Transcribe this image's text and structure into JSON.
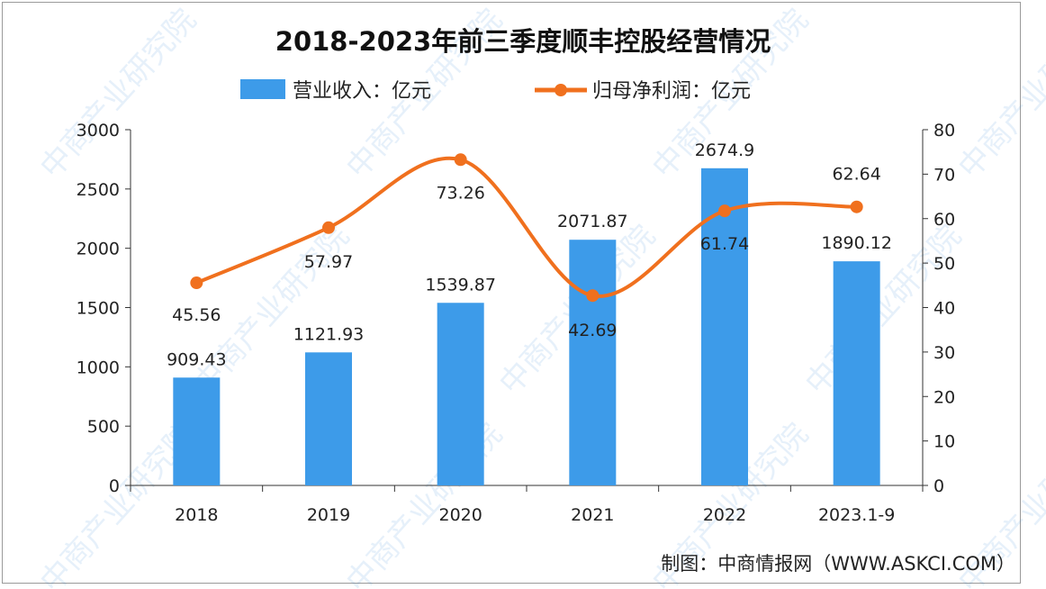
{
  "chart_data": {
    "type": "bar+line",
    "title": "2018-2023年前三季度顺丰控股经营情况",
    "categories": [
      "2018",
      "2019",
      "2020",
      "2021",
      "2022",
      "2023.1-9"
    ],
    "series": [
      {
        "name": "营业收入：亿元",
        "type": "bar",
        "axis": "left",
        "color": "#3d9be9",
        "values": [
          909.43,
          1121.93,
          1539.87,
          2071.87,
          2674.9,
          1890.12
        ],
        "labels": [
          "909.43",
          "1121.93",
          "1539.87",
          "2071.87",
          "2674.9",
          "1890.12"
        ]
      },
      {
        "name": "归母净利润：亿元",
        "type": "line",
        "axis": "right",
        "color": "#f0701e",
        "smooth": true,
        "values": [
          45.56,
          57.97,
          73.26,
          42.69,
          61.74,
          62.64
        ],
        "labels": [
          "45.56",
          "57.97",
          "73.26",
          "42.69",
          "61.74",
          "62.64"
        ]
      }
    ],
    "y_left": {
      "range": [
        0,
        3000
      ],
      "ticks": [
        "0",
        "500",
        "1000",
        "1500",
        "2000",
        "2500",
        "3000"
      ]
    },
    "y_right": {
      "range": [
        0,
        80
      ],
      "ticks": [
        "0",
        "10",
        "20",
        "30",
        "40",
        "50",
        "60",
        "70",
        "80"
      ]
    },
    "grid": false,
    "legend_placement": "top"
  },
  "source": "制图：中商情报网（WWW.ASKCI.COM）",
  "watermark": "中商产业研究院"
}
